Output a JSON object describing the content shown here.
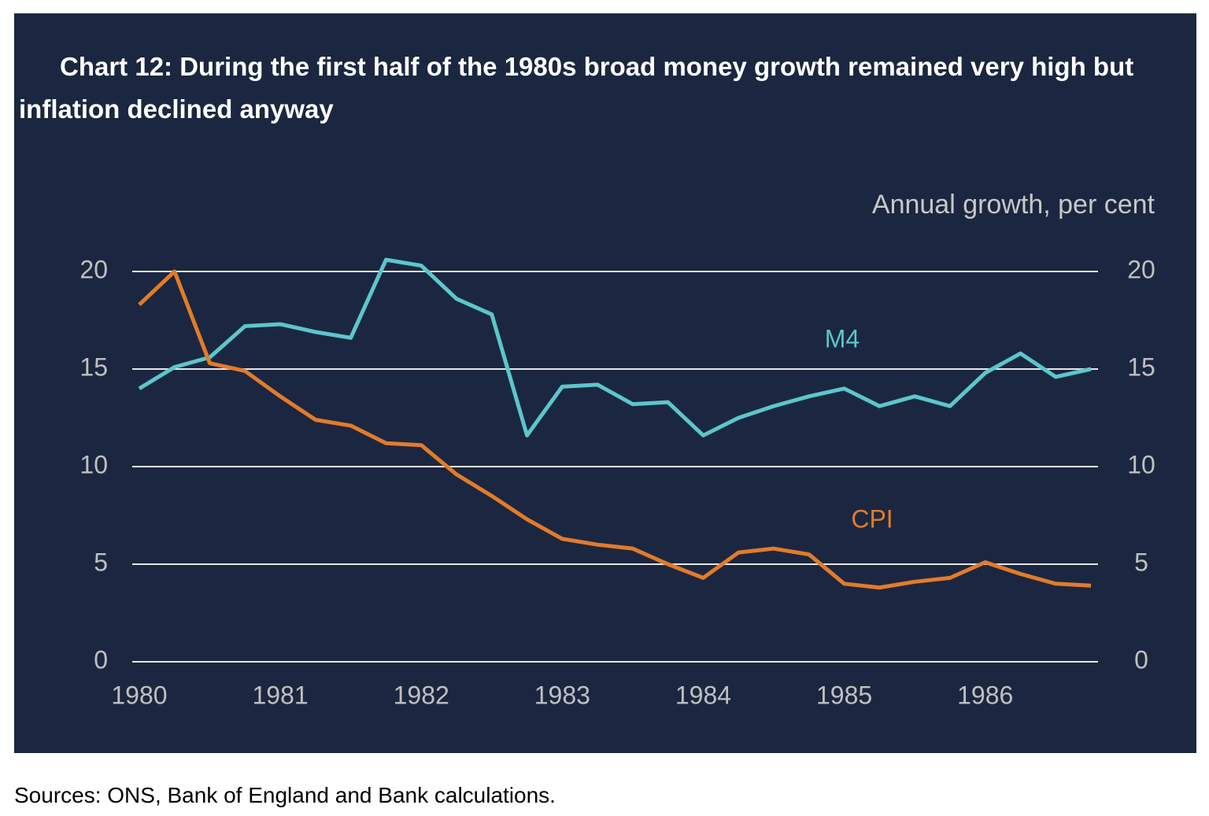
{
  "chart_data": {
    "type": "line",
    "title": "Chart 12: During the first half of the 1980s broad money growth remained very high but inflation declined anyway",
    "y_label": "Annual growth, per cent",
    "source": "Sources: ONS, Bank of England and Bank calculations.",
    "x": [
      1980,
      1980.25,
      1980.5,
      1980.75,
      1981,
      1981.25,
      1981.5,
      1981.75,
      1982,
      1982.25,
      1982.5,
      1982.75,
      1983,
      1983.25,
      1983.5,
      1983.75,
      1984,
      1984.25,
      1984.5,
      1984.75,
      1985,
      1985.25,
      1985.5,
      1985.75,
      1986,
      1986.25,
      1986.5,
      1986.75
    ],
    "series": [
      {
        "name": "M4",
        "color": "#5cc6cb",
        "values": [
          14.0,
          15.1,
          15.6,
          17.2,
          17.3,
          16.9,
          16.6,
          20.6,
          20.3,
          18.6,
          17.8,
          11.6,
          14.1,
          14.2,
          13.2,
          13.3,
          11.6,
          12.5,
          13.1,
          13.6,
          14.0,
          13.1,
          13.6,
          13.1,
          14.8,
          15.8,
          14.6,
          15.0
        ]
      },
      {
        "name": "CPI",
        "color": "#e27b2b",
        "values": [
          18.3,
          20.0,
          15.3,
          14.9,
          13.6,
          12.4,
          12.1,
          11.2,
          11.1,
          9.6,
          8.5,
          7.3,
          6.3,
          6.0,
          5.8,
          5.0,
          4.3,
          5.6,
          5.8,
          5.5,
          4.0,
          3.8,
          4.1,
          4.3,
          5.1,
          4.5,
          4.0,
          3.9
        ]
      }
    ],
    "xlim": [
      1979.95,
      1986.8
    ],
    "xticks": [
      1980,
      1981,
      1982,
      1983,
      1984,
      1985,
      1986
    ],
    "ylim": [
      0,
      20
    ],
    "yticks": [
      0,
      5,
      10,
      15,
      20
    ],
    "y2lim": [
      0,
      20
    ],
    "y2ticks": [
      0,
      5,
      10,
      15,
      20
    ],
    "grid": true
  }
}
